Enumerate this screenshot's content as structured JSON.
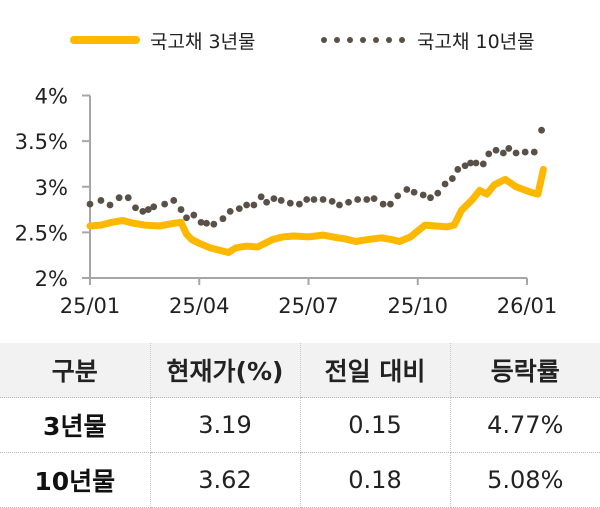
{
  "legend": {
    "series_3y": {
      "label": "국고채 3년물",
      "color": "#FFB800"
    },
    "series_10y": {
      "label": "국고채 10년물",
      "color": "#595048"
    }
  },
  "chart_data": {
    "type": "line",
    "title": "",
    "xlabel": "",
    "ylabel": "",
    "ylim": [
      2,
      4
    ],
    "yticks": [
      "4%",
      "3.5%",
      "3%",
      "2.5%",
      "2%"
    ],
    "ytick_values": [
      4,
      3.5,
      3,
      2.5,
      2
    ],
    "xticks": [
      "25/01",
      "25/04",
      "25/07",
      "25/10",
      "26/01"
    ],
    "grid": false,
    "legend_position": "top",
    "x_unit": "months since 2025-01",
    "series": [
      {
        "name": "국고채 3년물",
        "style": "solid",
        "color": "#FFB800",
        "x": [
          0.0,
          0.3,
          0.6,
          0.9,
          1.2,
          1.5,
          1.9,
          2.3,
          2.5,
          2.65,
          2.8,
          3.0,
          3.3,
          3.6,
          3.8,
          4.0,
          4.3,
          4.6,
          5.0,
          5.3,
          5.6,
          6.0,
          6.4,
          6.8,
          7.0,
          7.3,
          7.6,
          8.0,
          8.3,
          8.5,
          8.8,
          9.2,
          9.5,
          9.8,
          10.0,
          10.2,
          10.5,
          10.7,
          10.9,
          11.1,
          11.4,
          11.7,
          11.9,
          12.1,
          12.3,
          12.45
        ],
        "values": [
          2.57,
          2.58,
          2.61,
          2.63,
          2.6,
          2.58,
          2.57,
          2.6,
          2.61,
          2.48,
          2.42,
          2.38,
          2.33,
          2.3,
          2.28,
          2.33,
          2.35,
          2.34,
          2.42,
          2.45,
          2.46,
          2.45,
          2.47,
          2.44,
          2.43,
          2.4,
          2.42,
          2.44,
          2.42,
          2.4,
          2.45,
          2.58,
          2.57,
          2.56,
          2.58,
          2.74,
          2.86,
          2.96,
          2.92,
          3.02,
          3.08,
          3.0,
          2.97,
          2.94,
          2.92,
          3.19
        ]
      },
      {
        "name": "국고채 10년물",
        "style": "dotted",
        "color": "#595048",
        "x": [
          0.0,
          0.3,
          0.55,
          0.8,
          1.05,
          1.25,
          1.45,
          1.6,
          1.75,
          2.05,
          2.3,
          2.5,
          2.65,
          2.85,
          3.05,
          3.2,
          3.4,
          3.65,
          3.85,
          4.1,
          4.3,
          4.5,
          4.7,
          4.85,
          5.05,
          5.25,
          5.5,
          5.75,
          5.95,
          6.15,
          6.4,
          6.65,
          6.85,
          7.1,
          7.35,
          7.6,
          7.8,
          8.05,
          8.25,
          8.45,
          8.7,
          8.9,
          9.15,
          9.35,
          9.55,
          9.75,
          9.95,
          10.1,
          10.3,
          10.45,
          10.6,
          10.8,
          10.95,
          11.15,
          11.35,
          11.5,
          11.7,
          11.95,
          12.2,
          12.4
        ],
        "values": [
          2.81,
          2.85,
          2.8,
          2.88,
          2.88,
          2.77,
          2.73,
          2.75,
          2.78,
          2.81,
          2.85,
          2.75,
          2.66,
          2.69,
          2.61,
          2.6,
          2.59,
          2.65,
          2.73,
          2.76,
          2.8,
          2.8,
          2.89,
          2.83,
          2.87,
          2.85,
          2.82,
          2.81,
          2.86,
          2.86,
          2.86,
          2.84,
          2.8,
          2.83,
          2.86,
          2.86,
          2.87,
          2.81,
          2.81,
          2.9,
          2.97,
          2.94,
          2.91,
          2.88,
          2.93,
          3.03,
          3.09,
          3.19,
          3.23,
          3.26,
          3.26,
          3.25,
          3.36,
          3.4,
          3.37,
          3.42,
          3.37,
          3.38,
          3.38,
          3.62
        ]
      }
    ]
  },
  "table": {
    "headers": [
      "구분",
      "현재가(%)",
      "전일 대비",
      "등락률"
    ],
    "rows": [
      {
        "label": "3년물",
        "current": "3.19",
        "change": "0.15",
        "rate": "4.77%"
      },
      {
        "label": "10년물",
        "current": "3.62",
        "change": "0.18",
        "rate": "5.08%"
      }
    ]
  }
}
